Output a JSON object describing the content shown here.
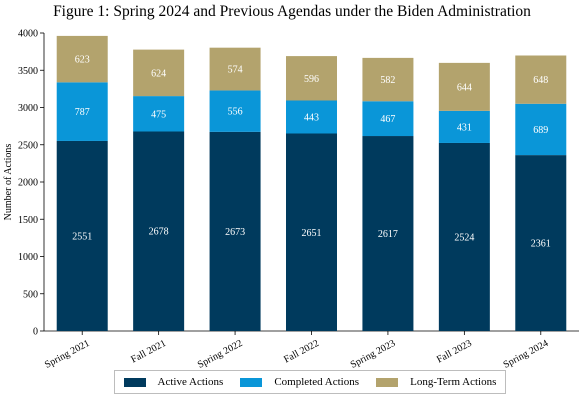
{
  "colors": {
    "active": "#003a5d",
    "completed": "#0a96d8",
    "long_term": "#b3a36d"
  },
  "chart_data": {
    "type": "bar",
    "stacked": true,
    "title": "Figure 1: Spring 2024 and Previous Agendas under the Biden Administration",
    "xlabel": "",
    "ylabel": "Number of Actions",
    "ylim": [
      0,
      4000
    ],
    "yticks": [
      0,
      500,
      1000,
      1500,
      2000,
      2500,
      3000,
      3500,
      4000
    ],
    "grid": false,
    "legend_position": "bottom",
    "categories": [
      "Spring 2021",
      "Fall 2021",
      "Spring 2022",
      "Fall 2022",
      "Spring 2023",
      "Fall 2023",
      "Spring 2024"
    ],
    "series": [
      {
        "name": "Active Actions",
        "color": "#003a5d",
        "values": [
          2551,
          2678,
          2673,
          2651,
          2617,
          2524,
          2361
        ]
      },
      {
        "name": "Completed Actions",
        "color": "#0a96d8",
        "values": [
          787,
          475,
          556,
          443,
          467,
          431,
          689
        ]
      },
      {
        "name": "Long-Term Actions",
        "color": "#b3a36d",
        "values": [
          623,
          624,
          574,
          596,
          582,
          644,
          648
        ]
      }
    ]
  }
}
